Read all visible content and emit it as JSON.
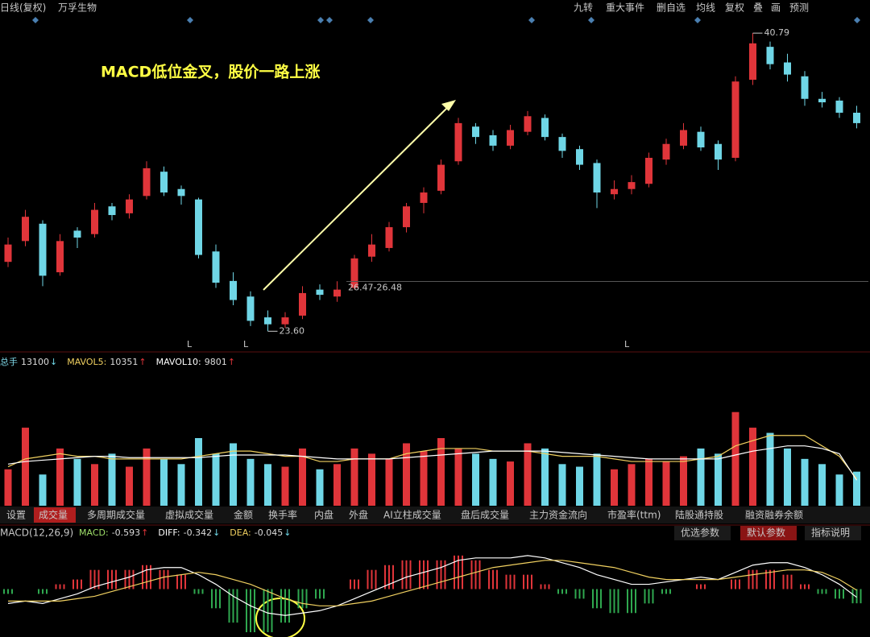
{
  "header": {
    "period": "日线(复权)",
    "stock": "万孚生物",
    "toolbar": [
      "九转",
      "重大事件",
      "删自选",
      "均线",
      "复权",
      "叠",
      "画",
      "预测"
    ]
  },
  "annotation": "MACD低位金叉，股价一路上涨",
  "markers": [
    "L",
    "L",
    "L"
  ],
  "tabs": [
    "设置",
    "成交量",
    "多周期成交量",
    "虚拟成交量",
    "金额",
    "换手率",
    "内盘",
    "外盘",
    "AI立柱成交量",
    "盘后成交量",
    "主力资金流向",
    "市盈率(ttm)",
    "陆股通持股",
    "融资融券余额"
  ],
  "active_tab": 1,
  "buttons": [
    "优选参数",
    "默认参数",
    "指标说明"
  ],
  "active_button": 1,
  "chart_data": [
    {
      "type": "candlestick",
      "open": [
        27.6,
        28.8,
        29.8,
        27.0,
        29.4,
        29.2,
        30.8,
        30.4,
        31.4,
        32.8,
        31.8,
        31.2,
        28.2,
        26.5,
        25.6,
        24.4,
        24.0,
        24.5,
        26.0,
        25.6,
        26.1,
        27.9,
        28.4,
        29.6,
        31.0,
        31.7,
        33.4,
        35.4,
        34.9,
        34.3,
        35.1,
        35.9,
        34.8,
        34.1,
        33.3,
        31.5,
        31.8,
        32.1,
        33.5,
        34.3,
        35.1,
        34.4,
        33.6,
        38.1,
        40.0,
        39.1,
        38.3,
        37.0,
        36.9,
        36.2
      ],
      "high": [
        29.0,
        30.6,
        30.0,
        29.2,
        29.6,
        31.0,
        31.0,
        31.5,
        33.4,
        33.1,
        32.0,
        31.3,
        28.6,
        27.0,
        25.9,
        24.8,
        24.7,
        26.2,
        26.3,
        26.48,
        28.0,
        29.2,
        29.9,
        31.0,
        31.9,
        33.5,
        35.9,
        35.6,
        35.2,
        35.5,
        36.3,
        36.1,
        35.0,
        34.3,
        33.5,
        32.3,
        32.6,
        33.9,
        34.7,
        35.6,
        35.4,
        34.6,
        38.3,
        40.79,
        40.3,
        39.6,
        38.6,
        37.4,
        37.1,
        36.6
      ],
      "low": [
        27.3,
        28.5,
        26.2,
        26.8,
        28.4,
        29.0,
        30.0,
        30.1,
        31.2,
        31.4,
        30.9,
        27.8,
        26.1,
        25.1,
        23.9,
        23.6,
        23.8,
        24.3,
        25.4,
        25.3,
        26.0,
        27.6,
        28.2,
        29.3,
        30.4,
        31.5,
        33.2,
        34.4,
        34.0,
        34.1,
        34.9,
        34.6,
        33.6,
        32.9,
        30.7,
        31.2,
        31.5,
        31.9,
        33.2,
        34.1,
        34.0,
        32.9,
        33.4,
        37.8,
        38.7,
        38.0,
        36.6,
        36.5,
        35.9,
        35.3
      ],
      "close": [
        28.6,
        30.2,
        26.8,
        28.8,
        29.0,
        30.6,
        30.3,
        31.2,
        33.0,
        31.6,
        31.4,
        28.0,
        26.4,
        25.4,
        24.2,
        24.0,
        24.4,
        25.8,
        25.7,
        26.0,
        27.8,
        28.6,
        29.6,
        30.8,
        31.6,
        33.2,
        35.6,
        34.8,
        34.3,
        35.2,
        36.0,
        34.8,
        34.0,
        33.2,
        31.6,
        31.8,
        32.2,
        33.6,
        34.4,
        35.2,
        34.2,
        33.5,
        38.0,
        40.2,
        39.0,
        38.4,
        37.0,
        36.8,
        36.2,
        35.6
      ],
      "ylim": [
        22.5,
        42.7
      ],
      "up_color": "#e0353a",
      "down_color": "#6fd6e6",
      "low_label": {
        "value": 23.6,
        "label": "23.60"
      },
      "range_line": {
        "value": 26.47,
        "label": "26.47-26.48"
      }
    },
    {
      "type": "volume",
      "ylim": [
        0,
        52000
      ],
      "series": [
        {
          "name": "总手",
          "color": "#7fd8e8",
          "arrow": "↓",
          "values": [
            14000,
            30000,
            12000,
            22000,
            18000,
            16000,
            20000,
            15000,
            22000,
            18000,
            16000,
            26000,
            20000,
            24000,
            18000,
            16000,
            15000,
            22000,
            14000,
            16000,
            22000,
            20000,
            18000,
            24000,
            21000,
            26000,
            22000,
            20000,
            18000,
            17000,
            24000,
            22000,
            16000,
            15000,
            20000,
            14000,
            16000,
            18000,
            17000,
            19000,
            22000,
            20000,
            36000,
            30000,
            28000,
            22000,
            18000,
            16000,
            12000,
            13100
          ]
        },
        {
          "name": "MAVOL5:",
          "color": "#f0d060",
          "arrow": "↑",
          "values": [
            15000,
            18000,
            19000,
            20000,
            19000,
            19000,
            18000,
            18000,
            18000,
            18000,
            18000,
            19000,
            20000,
            21000,
            21000,
            20000,
            19000,
            19000,
            17000,
            17000,
            18000,
            18000,
            18000,
            20000,
            21000,
            22000,
            22000,
            22000,
            21000,
            21000,
            21000,
            20000,
            19000,
            19000,
            19000,
            18000,
            17000,
            17000,
            17000,
            17000,
            18000,
            19000,
            23000,
            25000,
            27000,
            27000,
            27000,
            23000,
            19000,
            10351
          ]
        },
        {
          "name": "MAVOL10:",
          "color": "#ffffff",
          "arrow": "↑",
          "values": [
            16000,
            17000,
            17500,
            18000,
            18500,
            19000,
            19000,
            18500,
            18500,
            18500,
            18500,
            18500,
            19000,
            19500,
            19500,
            19500,
            19500,
            19000,
            18500,
            18000,
            18000,
            18000,
            18000,
            18500,
            19000,
            19500,
            20000,
            20500,
            21000,
            21000,
            21000,
            21000,
            20500,
            20000,
            19500,
            19000,
            18500,
            18000,
            18000,
            18000,
            18000,
            18000,
            19500,
            21000,
            22000,
            23000,
            23000,
            22000,
            20000,
            9801
          ]
        }
      ]
    },
    {
      "type": "macd",
      "title": "MACD(12,26,9)",
      "ylim": [
        -2,
        2
      ],
      "pos_color": "#e0353a",
      "neg_color": "#2fa84f",
      "series": [
        {
          "name": "MACD:",
          "color": "#9fe06a",
          "arrow": "↑",
          "values": [
            -0.2,
            0,
            -0.2,
            0.2,
            0.4,
            0.8,
            0.8,
            0.8,
            1.0,
            0.8,
            0.6,
            -0.2,
            -0.8,
            -1.4,
            -1.8,
            -1.8,
            -1.4,
            -0.8,
            -0.4,
            0,
            0.4,
            0.8,
            1.0,
            1.2,
            1.2,
            1.2,
            1.4,
            1.2,
            0.8,
            0.6,
            0.6,
            0.2,
            -0.2,
            -0.4,
            -0.8,
            -1.0,
            -1.0,
            -0.6,
            -0.2,
            0,
            0.2,
            0,
            0.4,
            0.8,
            0.8,
            0.6,
            0.2,
            -0.2,
            -0.4,
            -0.593
          ]
        },
        {
          "name": "DIFF:",
          "color": "#ffffff",
          "arrow": "↓",
          "values": [
            -0.6,
            -0.5,
            -0.6,
            -0.4,
            -0.2,
            0.1,
            0.3,
            0.5,
            0.8,
            0.9,
            0.9,
            0.6,
            0.2,
            -0.3,
            -0.7,
            -1.0,
            -1.1,
            -1.0,
            -0.9,
            -0.7,
            -0.4,
            -0.1,
            0.2,
            0.5,
            0.7,
            0.9,
            1.2,
            1.3,
            1.3,
            1.3,
            1.4,
            1.3,
            1.1,
            0.9,
            0.6,
            0.4,
            0.2,
            0.2,
            0.3,
            0.4,
            0.5,
            0.4,
            0.7,
            1.0,
            1.1,
            1.1,
            0.9,
            0.6,
            0.2,
            -0.342
          ]
        },
        {
          "name": "DEA:",
          "color": "#f0d060",
          "arrow": "↓",
          "values": [
            -0.5,
            -0.5,
            -0.5,
            -0.5,
            -0.4,
            -0.3,
            -0.1,
            0.1,
            0.3,
            0.5,
            0.6,
            0.7,
            0.6,
            0.4,
            0.2,
            -0.1,
            -0.4,
            -0.6,
            -0.7,
            -0.7,
            -0.6,
            -0.5,
            -0.3,
            -0.1,
            0.1,
            0.3,
            0.5,
            0.7,
            0.9,
            1.0,
            1.1,
            1.2,
            1.2,
            1.1,
            1.0,
            0.9,
            0.7,
            0.5,
            0.4,
            0.4,
            0.4,
            0.4,
            0.5,
            0.6,
            0.7,
            0.8,
            0.8,
            0.7,
            0.4,
            -0.045
          ]
        }
      ]
    }
  ]
}
